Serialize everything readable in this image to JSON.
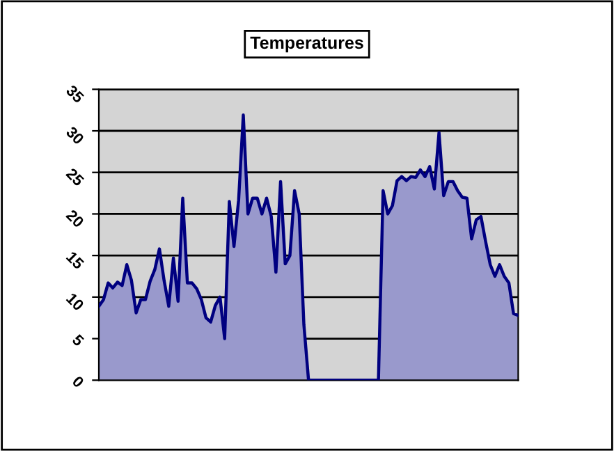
{
  "chart_data": {
    "type": "area",
    "title": "Temperatures",
    "categories": [
      null,
      null,
      null,
      null,
      null,
      null,
      null,
      null,
      null,
      null,
      null,
      null,
      null,
      null,
      null,
      null,
      null,
      null,
      null,
      null,
      null,
      null,
      null,
      null,
      null,
      null,
      null,
      null,
      null,
      null,
      null,
      null,
      null,
      null,
      null,
      null,
      null,
      null,
      null,
      null,
      null,
      null,
      null,
      null,
      null,
      null,
      null,
      null,
      null,
      null,
      null,
      null,
      null,
      null,
      null,
      null,
      null,
      null,
      null,
      null,
      null,
      null,
      null,
      null,
      null,
      null,
      null,
      null,
      null,
      null,
      null,
      null,
      null,
      null,
      null,
      null,
      null,
      null,
      null,
      null,
      null,
      null,
      null,
      null,
      null,
      null,
      null,
      null,
      null,
      null,
      null
    ],
    "series": [
      {
        "color": "#000080",
        "values": [
          8.9,
          9.7,
          11.7,
          11.1,
          11.8,
          11.4,
          13.9,
          12,
          8.1,
          9.7,
          9.7,
          11.9,
          13.3,
          15.8,
          12,
          8.9,
          14.7,
          9.5,
          21.9,
          11.7,
          11.7,
          11,
          9.7,
          7.5,
          7,
          9,
          10,
          5,
          21.5,
          16.1,
          21.7,
          31.9,
          20,
          21.9,
          21.9,
          20,
          21.9,
          19.7,
          13,
          23.9,
          14,
          15,
          22.8,
          20,
          6.7,
          0,
          0,
          0,
          0,
          0,
          0,
          0,
          0,
          0,
          0,
          0,
          0,
          0,
          0,
          0,
          0,
          22.8,
          20,
          21,
          24,
          24.5,
          24,
          24.5,
          24.4,
          25.3,
          24.5,
          25.7,
          23,
          29.8,
          22.2,
          23.9,
          23.9,
          22.8,
          22,
          21.9,
          17,
          19.3,
          19.7,
          16.7,
          13.9,
          12.5,
          13.9,
          12.5,
          11.7,
          8,
          7.8
        ]
      }
    ],
    "ylim": [
      0,
      35
    ],
    "yticks": [
      0,
      5,
      10,
      15,
      20,
      25,
      30,
      35
    ],
    "grid": "y",
    "legend": false
  }
}
